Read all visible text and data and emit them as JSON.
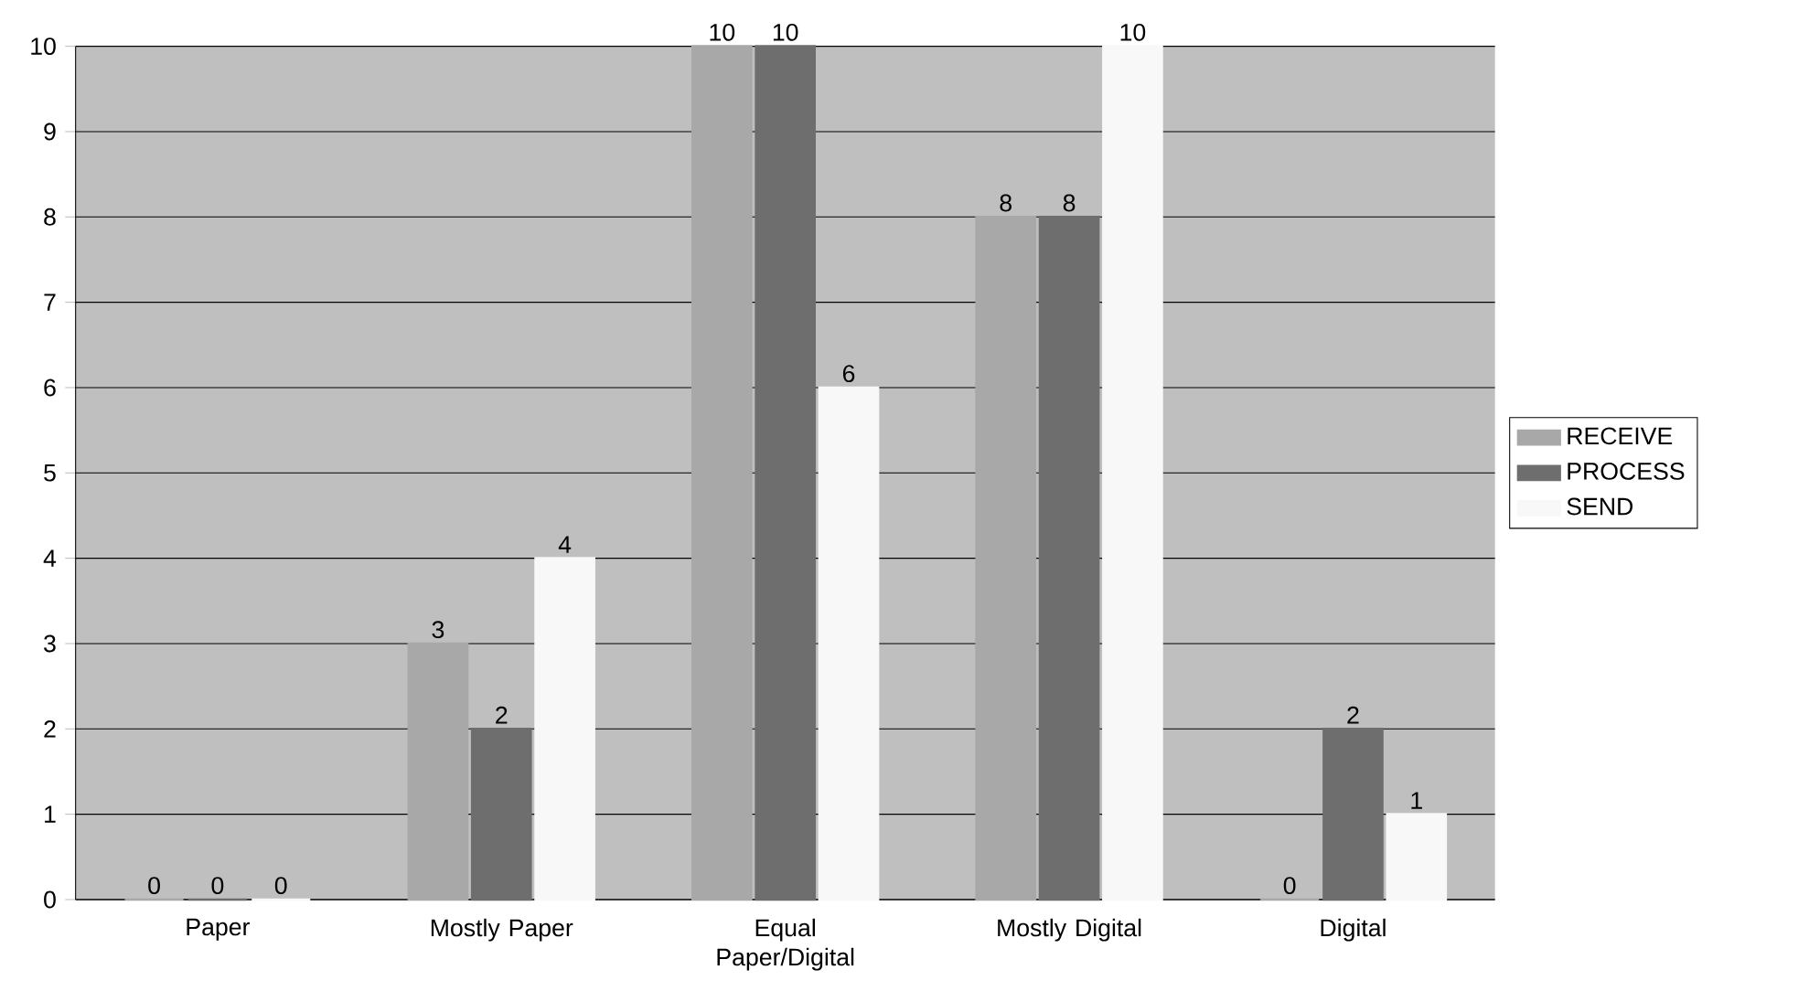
{
  "chart_data": {
    "type": "bar",
    "categories": [
      "Paper",
      "Mostly Paper",
      "Equal Paper/Digital",
      "Mostly Digital",
      "Digital"
    ],
    "series": [
      {
        "name": "RECEIVE",
        "color": "#a8a8a8",
        "values": [
          0,
          3,
          10,
          8,
          0
        ]
      },
      {
        "name": "PROCESS",
        "color": "#6e6e6e",
        "values": [
          0,
          2,
          10,
          8,
          2
        ]
      },
      {
        "name": "SEND",
        "color": "#f8f8f8",
        "values": [
          0,
          4,
          6,
          10,
          1
        ]
      }
    ],
    "ylim": [
      0,
      10
    ],
    "yticks": [
      0,
      1,
      2,
      3,
      4,
      5,
      6,
      7,
      8,
      9,
      10
    ],
    "grid": "y",
    "legend": "right",
    "data_labels": true
  }
}
